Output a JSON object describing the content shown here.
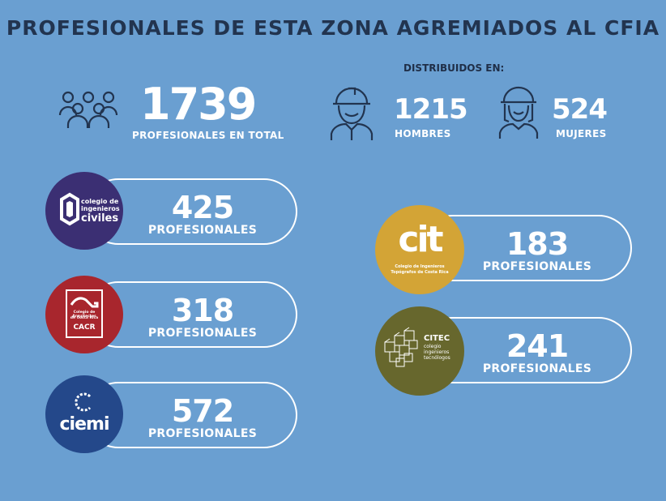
{
  "title": "PROFESIONALES DE ESTA ZONA AGREMIADOS AL CFIA",
  "total": {
    "value": "1739",
    "label": "PROFESIONALES EN TOTAL",
    "icon": "group-people-icon"
  },
  "distribution": {
    "heading": "DISTRIBUIDOS EN:",
    "men": {
      "value": "1215",
      "label": "HOMBRES",
      "icon": "male-engineer-icon"
    },
    "women": {
      "value": "524",
      "label": "MUJERES",
      "icon": "female-engineer-icon"
    }
  },
  "colleges": [
    {
      "logo_text": [
        "colegio de",
        "ingenieros",
        "civiles"
      ],
      "value": "425",
      "label": "PROFESIONALES",
      "color": "#3b2f73"
    },
    {
      "logo_text": [
        "Colegio de Arquitectos",
        "de Costa Rica",
        "CACR"
      ],
      "value": "318",
      "label": "PROFESIONALES",
      "color": "#a8262d"
    },
    {
      "logo_text": [
        "ciemi"
      ],
      "value": "572",
      "label": "PROFESIONALES",
      "color": "#24488a"
    },
    {
      "logo_text": [
        "cit",
        "Colegio de Ingenieros",
        "Topógrafos de Costa Rica"
      ],
      "value": "183",
      "label": "PROFESIONALES",
      "color": "#d3a436"
    },
    {
      "logo_text": [
        "CITEC",
        "colegio",
        "ingenieros",
        "tecnólogos"
      ],
      "value": "241",
      "label": "PROFESIONALES",
      "color": "#67672d"
    }
  ]
}
